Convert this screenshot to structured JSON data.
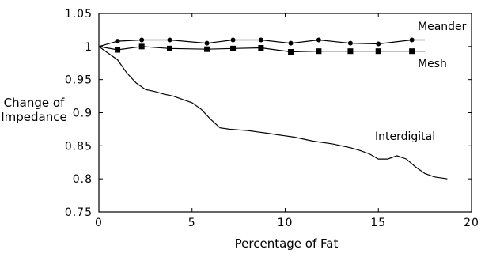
{
  "chart_data": {
    "type": "line",
    "title": "",
    "xlabel": "Percentage of Fat",
    "ylabel_lines": [
      "Change of",
      "Impedance"
    ],
    "xlim": [
      0,
      20
    ],
    "ylim": [
      0.75,
      1.05
    ],
    "x_ticks": [
      0,
      5,
      10,
      15,
      20
    ],
    "x_tick_labels": [
      "0",
      "5",
      "10",
      "15",
      "20"
    ],
    "y_ticks": [
      0.75,
      0.8,
      0.85,
      0.9,
      0.95,
      1,
      1.05
    ],
    "y_tick_labels": [
      "0.75",
      "0.8",
      "0.85",
      "0.9",
      "0.95",
      "1",
      "1.05"
    ],
    "grid": false,
    "legend": "none (series labelled inline)",
    "series": [
      {
        "name": "Meander",
        "marker": "circle",
        "color": "#000000",
        "x": [
          0,
          1.0,
          2.3,
          3.8,
          5.8,
          7.2,
          8.7,
          10.3,
          11.8,
          13.5,
          15.0,
          16.8,
          17.5
        ],
        "y": [
          1.0,
          1.008,
          1.01,
          1.01,
          1.005,
          1.01,
          1.01,
          1.005,
          1.01,
          1.005,
          1.004,
          1.01,
          1.01
        ]
      },
      {
        "name": "Mesh",
        "marker": "square",
        "color": "#000000",
        "x": [
          0,
          1.0,
          2.3,
          3.8,
          5.8,
          7.2,
          8.7,
          10.3,
          11.8,
          13.5,
          15.0,
          16.8,
          17.5
        ],
        "y": [
          1.0,
          0.995,
          1.0,
          0.997,
          0.996,
          0.997,
          0.998,
          0.992,
          0.993,
          0.993,
          0.993,
          0.993,
          0.993
        ]
      },
      {
        "name": "Interdigital",
        "marker": "none",
        "color": "#000000",
        "x": [
          0,
          0.5,
          1.0,
          1.5,
          2.0,
          2.5,
          3.0,
          3.5,
          4.0,
          4.5,
          5.0,
          5.5,
          6.0,
          6.5,
          7.0,
          7.5,
          8.0,
          8.5,
          9.0,
          9.5,
          10.0,
          10.5,
          11.0,
          11.5,
          12.0,
          12.5,
          13.0,
          13.5,
          14.0,
          14.5,
          15.0,
          15.5,
          16.0,
          16.5,
          17.0,
          17.5,
          18.0,
          18.7
        ],
        "y": [
          1.0,
          0.99,
          0.98,
          0.96,
          0.945,
          0.935,
          0.932,
          0.928,
          0.925,
          0.92,
          0.915,
          0.905,
          0.89,
          0.877,
          0.875,
          0.874,
          0.873,
          0.871,
          0.869,
          0.867,
          0.865,
          0.863,
          0.86,
          0.857,
          0.855,
          0.853,
          0.85,
          0.847,
          0.843,
          0.838,
          0.83,
          0.83,
          0.835,
          0.83,
          0.818,
          0.808,
          0.803,
          0.8
        ]
      }
    ],
    "series_labels": [
      {
        "series": "Meander",
        "text": "Meander"
      },
      {
        "series": "Mesh",
        "text": "Mesh"
      },
      {
        "series": "Interdigital",
        "text": "Interdigital"
      }
    ]
  }
}
